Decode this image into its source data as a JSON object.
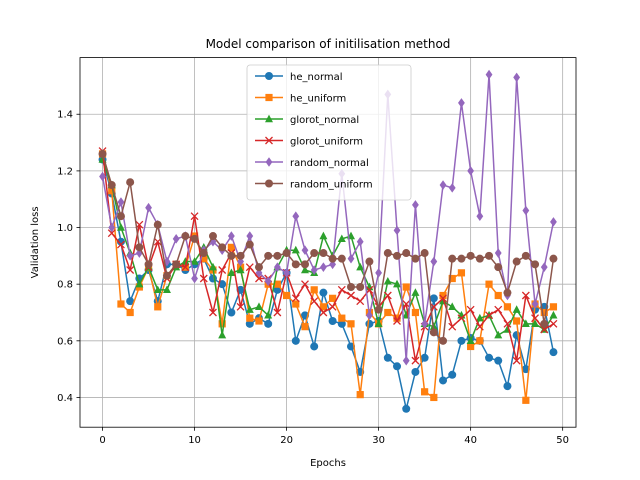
{
  "chart_data": {
    "type": "line",
    "title": "Model comparison of initilisation method",
    "xlabel": "Epochs",
    "ylabel": "Validation loss",
    "xlim": [
      -2.45,
      51.45
    ],
    "ylim": [
      0.295,
      1.6
    ],
    "xticks": [
      0,
      10,
      20,
      30,
      40,
      50
    ],
    "xtick_labels": [
      "0",
      "10",
      "20",
      "30",
      "40",
      "50"
    ],
    "yticks": [
      0.4,
      0.6,
      0.8,
      1.0,
      1.2,
      1.4
    ],
    "ytick_labels": [
      "0.4",
      "0.6",
      "0.8",
      "1.0",
      "1.2",
      "1.4"
    ],
    "grid": true,
    "legend_position": "upper-center",
    "x": [
      0,
      1,
      2,
      3,
      4,
      5,
      6,
      7,
      8,
      9,
      10,
      11,
      12,
      13,
      14,
      15,
      16,
      17,
      18,
      19,
      20,
      21,
      22,
      23,
      24,
      25,
      26,
      27,
      28,
      29,
      30,
      31,
      32,
      33,
      34,
      35,
      36,
      37,
      38,
      39,
      40,
      41,
      42,
      43,
      44,
      45,
      46,
      47,
      48,
      49
    ],
    "series": [
      {
        "name": "he_normal",
        "color": "#1f77b4",
        "marker": "circle",
        "values": [
          1.24,
          1.12,
          0.95,
          0.74,
          0.82,
          0.85,
          0.74,
          0.87,
          0.87,
          0.85,
          0.87,
          0.89,
          0.82,
          0.8,
          0.7,
          0.78,
          0.66,
          0.68,
          0.66,
          0.78,
          0.84,
          0.6,
          0.69,
          0.58,
          0.77,
          0.67,
          0.66,
          0.58,
          0.49,
          0.66,
          0.67,
          0.54,
          0.51,
          0.36,
          0.49,
          0.54,
          0.75,
          0.46,
          0.48,
          0.6,
          0.61,
          0.6,
          0.54,
          0.53,
          0.44,
          0.62,
          0.5,
          0.71,
          0.72,
          0.56
        ]
      },
      {
        "name": "he_uniform",
        "color": "#ff7f0e",
        "marker": "square",
        "values": [
          1.26,
          1.13,
          0.73,
          0.7,
          0.79,
          0.86,
          0.72,
          0.83,
          0.87,
          0.86,
          0.97,
          0.89,
          0.85,
          0.66,
          0.93,
          0.86,
          0.68,
          0.67,
          0.8,
          0.8,
          0.76,
          0.73,
          0.65,
          0.78,
          0.72,
          0.75,
          0.68,
          0.66,
          0.41,
          0.7,
          0.66,
          0.7,
          0.68,
          0.79,
          0.7,
          0.42,
          0.4,
          0.76,
          0.82,
          0.84,
          0.58,
          0.6,
          0.8,
          0.76,
          0.72,
          0.67,
          0.39,
          0.73,
          0.7,
          0.72
        ]
      },
      {
        "name": "glorot_normal",
        "color": "#2ca02c",
        "marker": "triangle",
        "values": [
          1.24,
          1.15,
          1.0,
          0.91,
          0.8,
          0.86,
          0.78,
          0.78,
          0.86,
          0.88,
          0.88,
          0.93,
          0.86,
          0.62,
          0.84,
          0.85,
          0.71,
          0.72,
          0.69,
          0.86,
          0.92,
          0.92,
          0.85,
          0.84,
          0.97,
          0.9,
          0.96,
          0.97,
          0.86,
          0.79,
          0.66,
          0.81,
          0.8,
          0.69,
          0.77,
          0.66,
          0.65,
          0.74,
          0.72,
          0.69,
          0.6,
          0.68,
          0.69,
          0.62,
          0.64,
          0.71,
          0.66,
          0.66,
          0.64,
          0.69
        ]
      },
      {
        "name": "glorot_uniform",
        "color": "#d62728",
        "marker": "x",
        "values": [
          1.27,
          0.98,
          0.94,
          0.85,
          1.01,
          0.86,
          0.95,
          0.82,
          0.87,
          0.86,
          1.04,
          0.82,
          0.7,
          0.85,
          0.91,
          0.72,
          0.86,
          0.82,
          0.82,
          0.7,
          0.84,
          0.75,
          0.8,
          0.74,
          0.7,
          0.72,
          0.78,
          0.76,
          0.74,
          0.78,
          0.72,
          0.76,
          0.67,
          0.73,
          0.53,
          0.65,
          0.72,
          0.75,
          0.65,
          0.68,
          0.71,
          0.65,
          0.69,
          0.71,
          0.66,
          0.53,
          0.76,
          0.68,
          0.64,
          0.66
        ]
      },
      {
        "name": "random_normal",
        "color": "#9467bd",
        "marker": "diamond",
        "values": [
          1.18,
          1.0,
          1.09,
          0.9,
          0.91,
          1.07,
          1.01,
          0.88,
          0.96,
          0.97,
          0.82,
          0.92,
          0.95,
          0.92,
          0.97,
          0.88,
          0.97,
          0.84,
          0.81,
          0.86,
          0.84,
          1.04,
          0.92,
          0.85,
          0.86,
          0.87,
          1.19,
          0.89,
          0.95,
          0.69,
          0.84,
          1.47,
          0.99,
          0.53,
          1.08,
          0.66,
          0.88,
          1.15,
          1.14,
          1.44,
          1.2,
          1.04,
          1.54,
          0.91,
          0.76,
          1.53,
          1.06,
          0.73,
          0.86,
          1.02
        ]
      },
      {
        "name": "random_uniform",
        "color": "#8c564b",
        "marker": "circle",
        "values": [
          1.26,
          1.15,
          1.04,
          1.16,
          0.93,
          0.87,
          1.01,
          0.83,
          0.87,
          0.97,
          0.96,
          0.91,
          0.97,
          0.93,
          0.9,
          0.9,
          0.94,
          0.86,
          0.9,
          0.9,
          0.91,
          0.87,
          0.87,
          0.91,
          0.91,
          0.89,
          0.89,
          0.79,
          0.79,
          0.88,
          0.71,
          0.91,
          0.9,
          0.91,
          0.89,
          0.91,
          0.63,
          0.6,
          0.89,
          0.89,
          0.9,
          0.89,
          0.9,
          0.86,
          0.77,
          0.88,
          0.9,
          0.87,
          0.66,
          0.89
        ]
      }
    ]
  }
}
